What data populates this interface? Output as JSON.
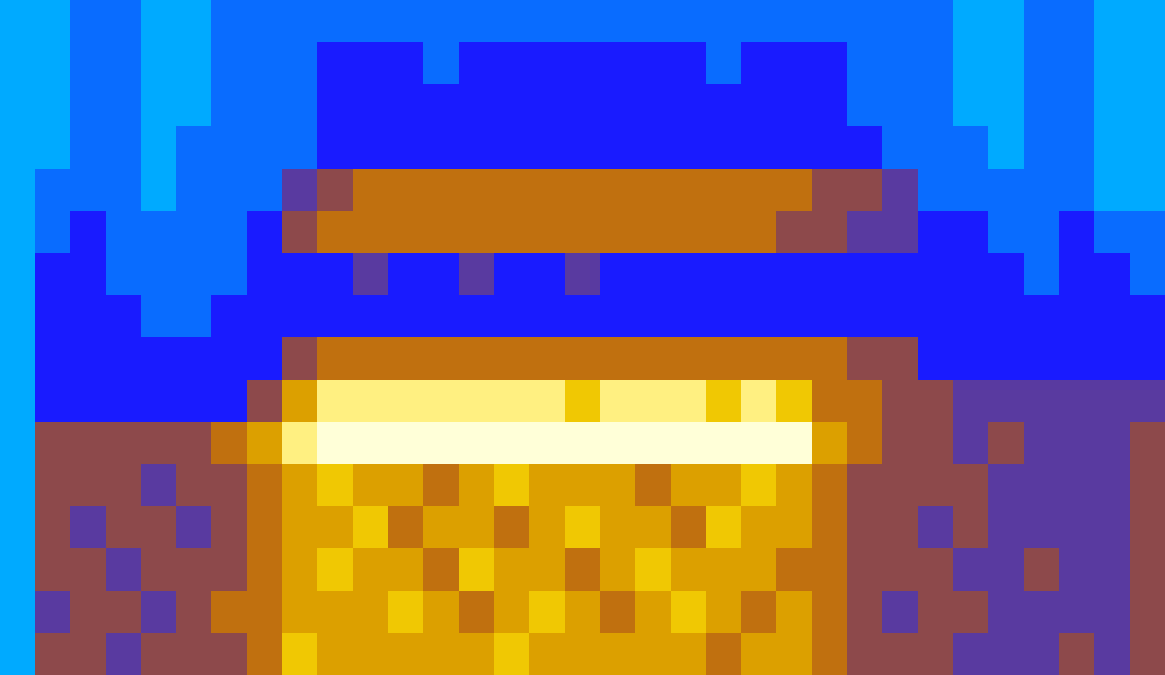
{
  "chart_data": {
    "type": "heatmap",
    "tick_labels": false,
    "cells": [
      [
        1,
        2,
        2,
        1,
        1,
        2,
        2,
        2,
        2,
        2,
        2,
        2,
        2,
        2,
        2,
        2,
        2,
        2,
        2,
        2,
        2,
        2,
        2,
        2,
        2,
        2,
        1,
        1,
        2,
        2,
        1,
        1
      ],
      [
        1,
        2,
        2,
        1,
        1,
        2,
        2,
        2,
        3,
        3,
        3,
        2,
        3,
        3,
        3,
        3,
        3,
        3,
        3,
        2,
        3,
        3,
        3,
        2,
        2,
        2,
        1,
        1,
        2,
        2,
        1,
        1
      ],
      [
        1,
        2,
        2,
        1,
        1,
        2,
        2,
        2,
        3,
        3,
        3,
        3,
        3,
        3,
        3,
        3,
        3,
        3,
        3,
        3,
        3,
        3,
        3,
        2,
        2,
        2,
        1,
        1,
        2,
        2,
        1,
        1
      ],
      [
        1,
        2,
        2,
        1,
        2,
        2,
        2,
        2,
        3,
        3,
        3,
        3,
        3,
        3,
        3,
        3,
        3,
        3,
        3,
        3,
        3,
        3,
        3,
        3,
        2,
        2,
        2,
        1,
        2,
        2,
        1,
        1
      ],
      [
        2,
        2,
        2,
        1,
        2,
        2,
        2,
        4,
        5,
        6,
        6,
        6,
        6,
        6,
        6,
        6,
        6,
        6,
        6,
        6,
        6,
        6,
        5,
        5,
        4,
        2,
        2,
        2,
        2,
        2,
        1,
        1
      ],
      [
        2,
        3,
        2,
        2,
        2,
        2,
        3,
        5,
        6,
        6,
        6,
        6,
        6,
        6,
        6,
        6,
        6,
        6,
        6,
        6,
        6,
        5,
        5,
        4,
        4,
        3,
        3,
        2,
        2,
        3,
        2,
        2
      ],
      [
        3,
        3,
        2,
        2,
        2,
        2,
        3,
        3,
        3,
        4,
        3,
        3,
        4,
        3,
        3,
        4,
        3,
        3,
        3,
        3,
        3,
        3,
        3,
        3,
        3,
        3,
        3,
        3,
        2,
        3,
        3,
        2
      ],
      [
        3,
        3,
        3,
        2,
        2,
        3,
        3,
        3,
        3,
        3,
        3,
        3,
        3,
        3,
        3,
        3,
        3,
        3,
        3,
        3,
        3,
        3,
        3,
        3,
        3,
        3,
        3,
        3,
        3,
        3,
        3,
        3
      ],
      [
        3,
        3,
        3,
        3,
        3,
        3,
        3,
        5,
        6,
        6,
        6,
        6,
        6,
        6,
        6,
        6,
        6,
        6,
        6,
        6,
        6,
        6,
        6,
        5,
        5,
        3,
        3,
        3,
        3,
        3,
        3,
        3
      ],
      [
        3,
        3,
        3,
        3,
        3,
        3,
        5,
        7,
        9,
        9,
        9,
        9,
        9,
        9,
        9,
        8,
        9,
        9,
        9,
        8,
        9,
        8,
        6,
        6,
        5,
        5,
        4,
        4,
        4,
        4,
        4,
        4
      ],
      [
        5,
        5,
        5,
        5,
        5,
        6,
        7,
        9,
        10,
        10,
        10,
        10,
        10,
        10,
        10,
        10,
        10,
        10,
        10,
        10,
        10,
        10,
        7,
        6,
        5,
        5,
        4,
        5,
        4,
        4,
        4,
        5
      ],
      [
        5,
        5,
        5,
        4,
        5,
        5,
        6,
        7,
        8,
        7,
        7,
        6,
        7,
        8,
        7,
        7,
        7,
        6,
        7,
        7,
        8,
        7,
        6,
        5,
        5,
        5,
        5,
        4,
        4,
        4,
        4,
        5
      ],
      [
        5,
        4,
        5,
        5,
        4,
        5,
        6,
        7,
        7,
        8,
        6,
        7,
        7,
        6,
        7,
        8,
        7,
        7,
        6,
        8,
        7,
        7,
        6,
        5,
        5,
        4,
        5,
        4,
        4,
        4,
        4,
        5
      ],
      [
        5,
        5,
        4,
        5,
        5,
        5,
        6,
        7,
        8,
        7,
        7,
        6,
        8,
        7,
        7,
        6,
        7,
        8,
        7,
        7,
        7,
        6,
        6,
        5,
        5,
        5,
        4,
        4,
        5,
        4,
        4,
        5
      ],
      [
        4,
        5,
        5,
        4,
        5,
        6,
        6,
        7,
        7,
        7,
        8,
        7,
        6,
        7,
        8,
        7,
        6,
        7,
        8,
        7,
        6,
        7,
        6,
        5,
        4,
        5,
        5,
        4,
        4,
        4,
        4,
        5
      ],
      [
        5,
        5,
        4,
        5,
        5,
        5,
        6,
        8,
        7,
        7,
        7,
        7,
        7,
        8,
        7,
        7,
        7,
        7,
        7,
        6,
        7,
        7,
        6,
        5,
        5,
        5,
        4,
        4,
        4,
        5,
        4,
        5
      ]
    ]
  }
}
